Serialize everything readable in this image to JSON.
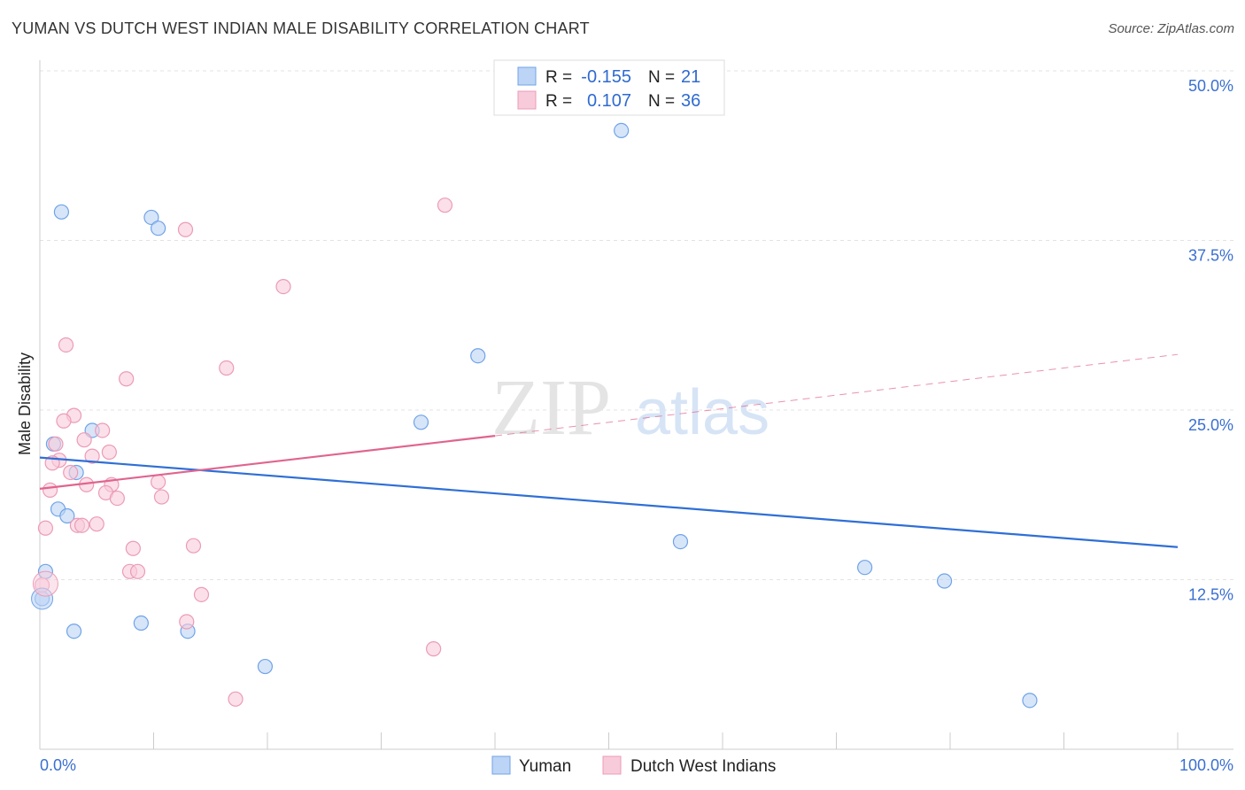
{
  "chart_data": {
    "type": "scatter",
    "title": "YUMAN VS DUTCH WEST INDIAN MALE DISABILITY CORRELATION CHART",
    "source": "Source: ZipAtlas.com",
    "xlabel": "",
    "ylabel": "Male Disability",
    "xlim": [
      0,
      100
    ],
    "ylim": [
      0,
      50
    ],
    "x_tick_labels": [
      "0.0%",
      "100.0%"
    ],
    "y_ticks": [
      12.5,
      25.0,
      37.5,
      50.0
    ],
    "y_tick_labels": [
      "12.5%",
      "25.0%",
      "37.5%",
      "50.0%"
    ],
    "grid": true,
    "watermark": "ZIPatlas",
    "legend": {
      "position": "top-center",
      "entries": [
        {
          "r_label": "R =",
          "r": "-0.155",
          "n_label": "N =",
          "n": "21"
        },
        {
          "r_label": "R =",
          "r": "0.107",
          "n_label": "N =",
          "n": "36"
        }
      ]
    },
    "series": [
      {
        "name": "Yuman",
        "color": "#6fa3e8",
        "fill": "#bcd4f5",
        "line_color": "#2f6fd6",
        "trend": {
          "x": [
            0,
            100
          ],
          "y": [
            21.5,
            14.9
          ],
          "dashed_from": null
        },
        "points": [
          [
            1.9,
            39.6
          ],
          [
            9.8,
            39.2
          ],
          [
            10.4,
            38.4
          ],
          [
            51.1,
            45.6
          ],
          [
            38.5,
            29.0
          ],
          [
            33.5,
            24.1
          ],
          [
            4.6,
            23.5
          ],
          [
            1.2,
            22.5
          ],
          [
            3.2,
            20.4
          ],
          [
            1.6,
            17.7
          ],
          [
            2.4,
            17.2
          ],
          [
            56.3,
            15.3
          ],
          [
            0.5,
            13.1
          ],
          [
            72.5,
            13.4
          ],
          [
            79.5,
            12.4
          ],
          [
            0.2,
            11.1
          ],
          [
            3.0,
            8.7
          ],
          [
            8.9,
            9.3
          ],
          [
            13.0,
            8.7
          ],
          [
            19.8,
            6.1
          ],
          [
            87.0,
            3.6
          ]
        ]
      },
      {
        "name": "Dutch West Indians",
        "color": "#ec9bb7",
        "fill": "#f8cbdb",
        "line_color": "#e0648f",
        "trend": {
          "x": [
            0,
            40,
            100
          ],
          "y": [
            19.2,
            23.1,
            29.1
          ],
          "dashed_from": 40
        },
        "points": [
          [
            35.6,
            40.1
          ],
          [
            12.8,
            38.3
          ],
          [
            21.4,
            34.1
          ],
          [
            2.3,
            29.8
          ],
          [
            16.4,
            28.1
          ],
          [
            7.6,
            27.3
          ],
          [
            3.0,
            24.6
          ],
          [
            2.1,
            24.2
          ],
          [
            5.5,
            23.5
          ],
          [
            3.9,
            22.8
          ],
          [
            1.4,
            22.5
          ],
          [
            6.1,
            21.9
          ],
          [
            4.6,
            21.6
          ],
          [
            1.7,
            21.3
          ],
          [
            1.1,
            21.1
          ],
          [
            2.7,
            20.4
          ],
          [
            10.4,
            19.7
          ],
          [
            4.1,
            19.5
          ],
          [
            6.3,
            19.5
          ],
          [
            0.9,
            19.1
          ],
          [
            5.8,
            18.9
          ],
          [
            6.8,
            18.5
          ],
          [
            10.7,
            18.6
          ],
          [
            0.5,
            16.3
          ],
          [
            5.0,
            16.6
          ],
          [
            3.3,
            16.5
          ],
          [
            3.7,
            16.5
          ],
          [
            8.2,
            14.8
          ],
          [
            13.5,
            15.0
          ],
          [
            7.9,
            13.1
          ],
          [
            8.6,
            13.1
          ],
          [
            0.2,
            12.1
          ],
          [
            14.2,
            11.4
          ],
          [
            12.9,
            9.4
          ],
          [
            34.6,
            7.4
          ],
          [
            17.2,
            3.7
          ]
        ]
      }
    ]
  }
}
